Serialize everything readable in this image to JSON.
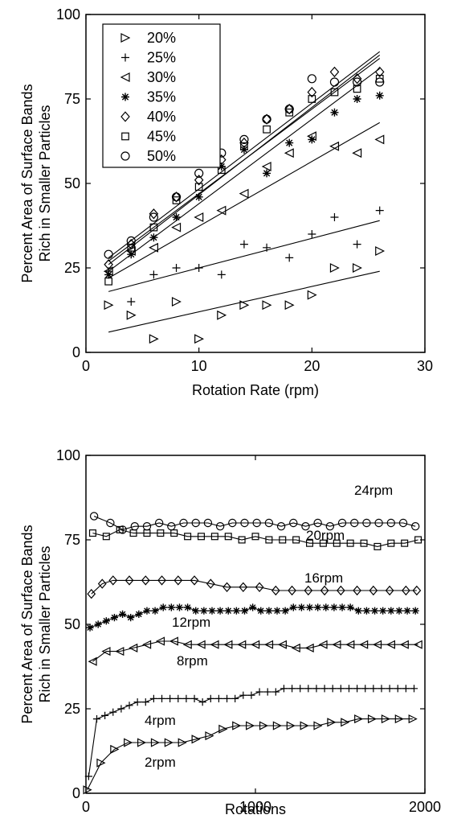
{
  "chart_data": [
    {
      "type": "scatter",
      "xlabel": "Rotation Rate (rpm)",
      "ylabel": [
        "Percent Area of Surface Bands",
        "Rich in Smaller Particles"
      ],
      "xlim": [
        0,
        30
      ],
      "ylim": [
        0,
        100
      ],
      "xticks": [
        "0",
        "10",
        "20",
        "30"
      ],
      "yticks": [
        "0",
        "25",
        "50",
        "75",
        "100"
      ],
      "legend_position": "top-left",
      "x": [
        2,
        4,
        6,
        8,
        10,
        12,
        14,
        16,
        18,
        20,
        22,
        24,
        26
      ],
      "series": [
        {
          "name": "20%",
          "marker": "triangle-right",
          "values": [
            14,
            11,
            4,
            15,
            4,
            11,
            14,
            14,
            14,
            17,
            25,
            25,
            30
          ],
          "fit": [
            [
              2,
              6
            ],
            [
              26,
              24
            ]
          ]
        },
        {
          "name": "25%",
          "marker": "plus",
          "values": [
            24,
            15,
            23,
            25,
            25,
            23,
            32,
            31,
            28,
            35,
            40,
            32,
            42
          ],
          "fit": [
            [
              2,
              18
            ],
            [
              26,
              39
            ]
          ]
        },
        {
          "name": "30%",
          "marker": "triangle-left",
          "values": [
            24,
            30,
            31,
            37,
            40,
            42,
            47,
            55,
            59,
            64,
            61,
            59,
            63
          ],
          "fit": [
            [
              2,
              22
            ],
            [
              26,
              68
            ]
          ]
        },
        {
          "name": "35%",
          "marker": "asterisk",
          "values": [
            23,
            29,
            34,
            40,
            46,
            55,
            60,
            53,
            62,
            63,
            71,
            75,
            76
          ],
          "fit": [
            [
              2,
              24
            ],
            [
              26,
              84
            ]
          ]
        },
        {
          "name": "40%",
          "marker": "diamond",
          "values": [
            26,
            32,
            41,
            46,
            51,
            57,
            62,
            69,
            72,
            77,
            83,
            81,
            83
          ],
          "fit": [
            [
              2,
              26
            ],
            [
              26,
              88
            ]
          ]
        },
        {
          "name": "45%",
          "marker": "square",
          "values": [
            21,
            31,
            37,
            45,
            49,
            54,
            61,
            66,
            71,
            75,
            77,
            78,
            81
          ],
          "fit": [
            [
              2,
              27
            ],
            [
              26,
              87
            ]
          ]
        },
        {
          "name": "50%",
          "marker": "circle",
          "values": [
            29,
            33,
            40,
            46,
            53,
            59,
            63,
            69,
            72,
            81,
            80,
            80,
            80
          ],
          "fit": [
            [
              2,
              28
            ],
            [
              26,
              89
            ]
          ]
        }
      ]
    },
    {
      "type": "line",
      "xlabel": "Rotations",
      "ylabel": [
        "Percent Area of Surface Bands",
        "Rich in Smaller Particles"
      ],
      "xlim": [
        0,
        2000
      ],
      "ylim": [
        0,
        100
      ],
      "xticks": [
        "0",
        "1000",
        "2000"
      ],
      "yticks": [
        "0",
        "25",
        "50",
        "75",
        "100"
      ],
      "series": [
        {
          "name": "24rpm",
          "marker": "circle",
          "x": [
            48,
            144,
            216,
            288,
            360,
            432,
            504,
            576,
            648,
            720,
            792,
            864,
            936,
            1008,
            1080,
            1152,
            1224,
            1296,
            1368,
            1440,
            1512,
            1584,
            1656,
            1728,
            1800,
            1872,
            1944
          ],
          "values": [
            82,
            80,
            78,
            79,
            79,
            80,
            79,
            80,
            80,
            80,
            79,
            80,
            80,
            80,
            80,
            79,
            80,
            79,
            80,
            79,
            80,
            80,
            80,
            80,
            80,
            80,
            79
          ]
        },
        {
          "name": "20rpm",
          "marker": "square",
          "x": [
            40,
            120,
            200,
            280,
            360,
            440,
            520,
            600,
            680,
            760,
            840,
            920,
            1000,
            1080,
            1160,
            1240,
            1320,
            1400,
            1480,
            1560,
            1640,
            1720,
            1800,
            1880,
            1960
          ],
          "values": [
            77,
            76,
            78,
            77,
            77,
            77,
            77,
            76,
            76,
            76,
            76,
            75,
            76,
            75,
            75,
            75,
            74,
            74,
            74,
            74,
            74,
            73,
            74,
            74,
            75
          ]
        },
        {
          "name": "16rpm",
          "marker": "diamond",
          "x": [
            32,
            96,
            160,
            256,
            352,
            448,
            544,
            640,
            736,
            832,
            928,
            1024,
            1120,
            1216,
            1312,
            1408,
            1504,
            1600,
            1696,
            1792,
            1888,
            1952
          ],
          "values": [
            59,
            62,
            63,
            63,
            63,
            63,
            63,
            63,
            62,
            61,
            61,
            61,
            60,
            60,
            60,
            60,
            60,
            60,
            60,
            60,
            60,
            60
          ]
        },
        {
          "name": "12rpm",
          "marker": "asterisk",
          "x": [
            24,
            72,
            120,
            168,
            216,
            264,
            312,
            360,
            408,
            456,
            504,
            552,
            600,
            648,
            696,
            744,
            792,
            840,
            888,
            936,
            984,
            1032,
            1080,
            1128,
            1176,
            1224,
            1272,
            1320,
            1368,
            1416,
            1464,
            1512,
            1560,
            1608,
            1656,
            1704,
            1752,
            1800,
            1848,
            1896,
            1944
          ],
          "values": [
            49,
            50,
            51,
            52,
            53,
            52,
            53,
            54,
            54,
            55,
            55,
            55,
            55,
            54,
            54,
            54,
            54,
            54,
            54,
            54,
            55,
            54,
            54,
            54,
            54,
            55,
            55,
            55,
            55,
            55,
            55,
            55,
            55,
            54,
            54,
            54,
            54,
            54,
            54,
            54,
            54
          ]
        },
        {
          "name": "8rpm",
          "marker": "triangle-left",
          "x": [
            40,
            120,
            200,
            280,
            360,
            440,
            520,
            600,
            680,
            760,
            840,
            920,
            1000,
            1080,
            1160,
            1240,
            1320,
            1400,
            1480,
            1560,
            1640,
            1720,
            1800,
            1880,
            1960
          ],
          "values": [
            39,
            42,
            42,
            43,
            44,
            45,
            45,
            44,
            44,
            44,
            44,
            44,
            44,
            44,
            44,
            43,
            43,
            44,
            44,
            44,
            44,
            44,
            44,
            44,
            44
          ]
        },
        {
          "name": "4rpm",
          "marker": "plus",
          "x": [
            16,
            64,
            112,
            160,
            208,
            256,
            304,
            352,
            400,
            448,
            496,
            544,
            592,
            640,
            688,
            736,
            784,
            832,
            880,
            928,
            976,
            1024,
            1072,
            1120,
            1168,
            1216,
            1264,
            1312,
            1360,
            1408,
            1456,
            1504,
            1552,
            1600,
            1648,
            1696,
            1744,
            1792,
            1840,
            1888,
            1936
          ],
          "values": [
            5,
            22,
            23,
            24,
            25,
            26,
            27,
            27,
            28,
            28,
            28,
            28,
            28,
            28,
            27,
            28,
            28,
            28,
            28,
            29,
            29,
            30,
            30,
            30,
            31,
            31,
            31,
            31,
            31,
            31,
            31,
            31,
            31,
            31,
            31,
            31,
            31,
            31,
            31,
            31,
            31
          ]
        },
        {
          "name": "2rpm",
          "marker": "triangle-right",
          "x": [
            8,
            88,
            168,
            248,
            328,
            408,
            488,
            568,
            648,
            728,
            808,
            888,
            968,
            1048,
            1128,
            1208,
            1288,
            1368,
            1448,
            1528,
            1608,
            1688,
            1768,
            1848,
            1928
          ],
          "values": [
            1,
            9,
            13,
            15,
            15,
            15,
            15,
            15,
            16,
            17,
            19,
            20,
            20,
            20,
            20,
            20,
            20,
            20,
            21,
            21,
            22,
            22,
            22,
            22,
            22
          ]
        }
      ]
    }
  ]
}
